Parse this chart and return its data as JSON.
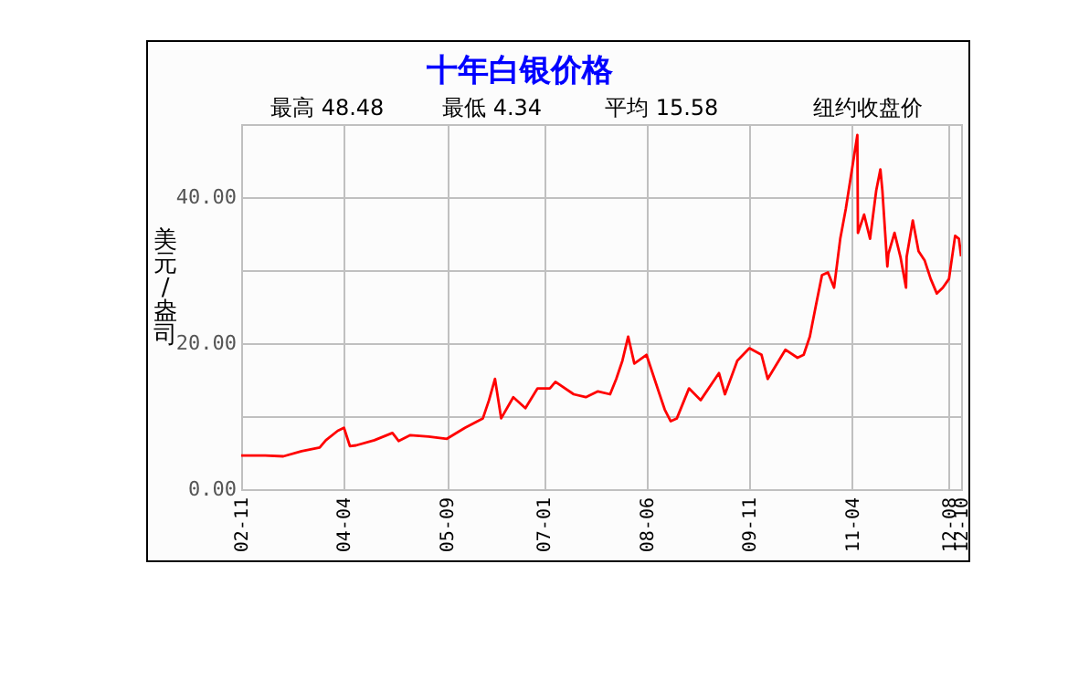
{
  "chart_data": {
    "type": "line",
    "title": "十年白银价格",
    "ylabel": "美元/盎司",
    "annotations": [
      "最高 48.48",
      "最低 4.34",
      "平均 15.58",
      "纽约收盘价"
    ],
    "x": [
      "2002-11",
      "2003-03",
      "2003-06",
      "2003-09",
      "2003-12",
      "2004-01",
      "2004-03",
      "2004-04",
      "2004-05",
      "2004-06",
      "2004-09",
      "2004-12",
      "2005-01",
      "2005-03",
      "2005-06",
      "2005-09",
      "2005-12",
      "2006-03",
      "2006-04",
      "2006-05",
      "2006-06",
      "2006-08",
      "2006-10",
      "2006-12",
      "2007-02",
      "2007-03",
      "2007-06",
      "2007-08",
      "2007-10",
      "2007-12",
      "2008-01",
      "2008-02",
      "2008-03",
      "2008-04",
      "2008-06",
      "2008-08",
      "2008-09",
      "2008-10",
      "2008-11",
      "2009-01",
      "2009-03",
      "2009-06",
      "2009-07",
      "2009-09",
      "2009-11",
      "2010-01",
      "2010-02",
      "2010-05",
      "2010-07",
      "2010-08",
      "2010-09",
      "2010-10",
      "2010-11",
      "2010-12",
      "2011-01",
      "2011-02",
      "2011-03",
      "2011-04-28",
      "2011-05",
      "2011-06",
      "2011-07",
      "2011-08",
      "2011-08-22",
      "2011-09",
      "2011-09-26",
      "2011-10",
      "2011-11",
      "2011-12",
      "2011-12-29",
      "2012-01",
      "2012-02",
      "2012-03",
      "2012-04",
      "2012-05",
      "2012-06",
      "2012-07",
      "2012-08",
      "2012-09",
      "2012-09-20",
      "2012-10"
    ],
    "series": [
      {
        "color": "#ff0000",
        "values": [
          4.6,
          4.6,
          4.5,
          5.2,
          5.7,
          6.7,
          8.0,
          8.4,
          5.9,
          6.0,
          6.7,
          7.7,
          6.6,
          7.4,
          7.2,
          6.9,
          8.4,
          9.7,
          12.2,
          15.1,
          9.7,
          12.6,
          11.1,
          13.8,
          13.8,
          14.7,
          13.0,
          12.6,
          13.4,
          13.0,
          15.1,
          17.6,
          20.9,
          17.2,
          18.4,
          13.4,
          10.9,
          9.3,
          9.7,
          13.8,
          12.2,
          15.9,
          13.0,
          17.6,
          19.3,
          18.4,
          15.1,
          19.1,
          18.0,
          18.4,
          20.9,
          25.1,
          29.3,
          29.7,
          27.6,
          34.3,
          38.4,
          48.5,
          35.1,
          37.6,
          34.3,
          40.9,
          43.8,
          40.9,
          30.5,
          32.2,
          35.1,
          31.8,
          27.6,
          31.8,
          36.8,
          32.6,
          31.3,
          28.8,
          26.8,
          27.6,
          28.8,
          34.7,
          34.3,
          31.9
        ]
      }
    ],
    "xlim": [
      "2002-11",
      "2012-10"
    ],
    "xticks": [
      {
        "value": "2002-11",
        "label": "02-11"
      },
      {
        "value": "2004-04",
        "label": "04-04"
      },
      {
        "value": "2005-09",
        "label": "05-09"
      },
      {
        "value": "2007-01",
        "label": "07-01"
      },
      {
        "value": "2008-06",
        "label": "08-06"
      },
      {
        "value": "2009-11",
        "label": "09-11"
      },
      {
        "value": "2011-04",
        "label": "11-04"
      },
      {
        "value": "2012-08",
        "label": "12-08"
      },
      {
        "value": "2012-10",
        "label": "12-10"
      }
    ],
    "ylim": [
      0,
      50
    ],
    "yticks": [
      {
        "value": 0,
        "label": "0.00"
      },
      {
        "value": 10,
        "label": null
      },
      {
        "value": 20,
        "label": "20.00"
      },
      {
        "value": 30,
        "label": null
      },
      {
        "value": 40,
        "label": "40.00"
      }
    ],
    "grid": true,
    "marker": "none",
    "line_style": "solid"
  }
}
